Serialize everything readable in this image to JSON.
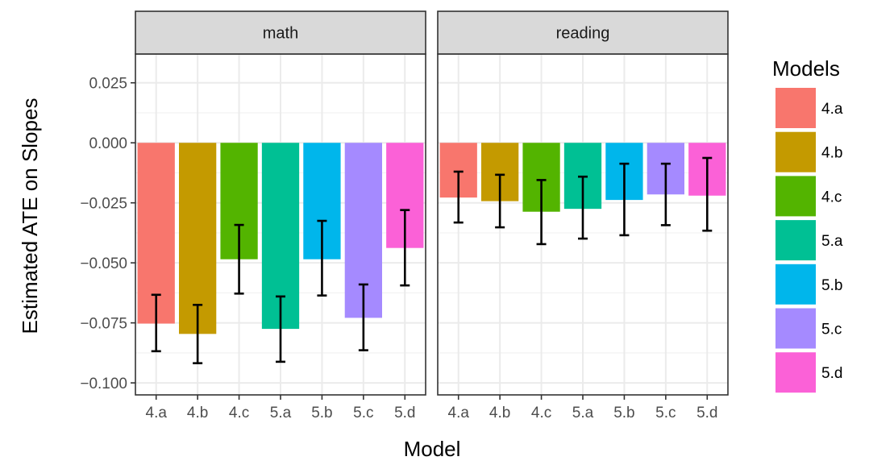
{
  "chart_data": {
    "type": "bar",
    "ylabel": "Estimated ATE on Slopes",
    "xlabel": "Model",
    "ylim": [
      -0.105,
      0.037
    ],
    "yticks": [
      0.025,
      0.0,
      -0.025,
      -0.05,
      -0.075,
      -0.1
    ],
    "ytick_labels": [
      "0.025",
      "0.000",
      "−0.025",
      "−0.050",
      "−0.075",
      "−0.100"
    ],
    "categories": [
      "4.a",
      "4.b",
      "4.c",
      "5.a",
      "5.b",
      "5.c",
      "5.d"
    ],
    "colors": [
      "#F8766D",
      "#C49A00",
      "#53B400",
      "#00C094",
      "#00B6EB",
      "#A58AFF",
      "#FB61D7"
    ],
    "legend": {
      "title": "Models",
      "position": "right"
    },
    "grid": true,
    "panels": [
      {
        "name": "math",
        "values": [
          -0.0753,
          -0.0796,
          -0.0485,
          -0.0775,
          -0.0485,
          -0.0729,
          -0.0438
        ],
        "error_low": [
          -0.0868,
          -0.0918,
          -0.0628,
          -0.0912,
          -0.0636,
          -0.0864,
          -0.0594
        ],
        "error_high": [
          -0.0633,
          -0.0675,
          -0.0342,
          -0.064,
          -0.0325,
          -0.059,
          -0.028
        ]
      },
      {
        "name": "reading",
        "values": [
          -0.0228,
          -0.0243,
          -0.0287,
          -0.0275,
          -0.0238,
          -0.0215,
          -0.022
        ],
        "error_low": [
          -0.0332,
          -0.0352,
          -0.0422,
          -0.0399,
          -0.0385,
          -0.0343,
          -0.0366
        ],
        "error_high": [
          -0.012,
          -0.0133,
          -0.0155,
          -0.0141,
          -0.0087,
          -0.0087,
          -0.0063
        ]
      }
    ]
  }
}
